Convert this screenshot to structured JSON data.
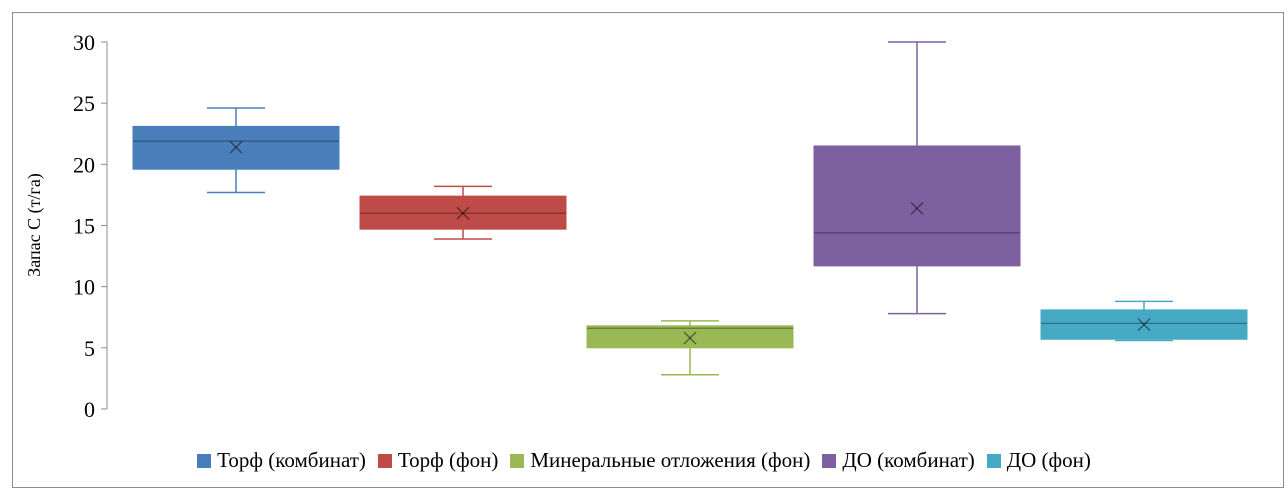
{
  "chart_data": {
    "type": "boxplot",
    "ylabel": "Запас С (т/га)",
    "ylim": [
      0,
      30
    ],
    "yticks": [
      "0",
      "5",
      "10",
      "15",
      "20",
      "25",
      "30"
    ],
    "series": [
      {
        "name": "Торф (комбинат)",
        "color": "#4a7ebb",
        "min": 17.7,
        "q1": 19.6,
        "median": 21.9,
        "q3": 23.1,
        "max": 24.6,
        "mean": 21.4
      },
      {
        "name": "Торф (фон)",
        "color": "#be4b48",
        "min": 13.9,
        "q1": 14.7,
        "median": 16.0,
        "q3": 17.4,
        "max": 18.2,
        "mean": 16.0
      },
      {
        "name": "Минеральные отложения (фон)",
        "color": "#98b954",
        "min": 2.8,
        "q1": 5.0,
        "median": 6.6,
        "q3": 6.8,
        "max": 7.2,
        "mean": 5.8
      },
      {
        "name": "ДО (комбинат)",
        "color": "#7d60a0",
        "min": 7.8,
        "q1": 11.7,
        "median": 14.4,
        "q3": 21.5,
        "max": 30.0,
        "mean": 16.4
      },
      {
        "name": "ДО (фон)",
        "color": "#46aac5",
        "min": 5.6,
        "q1": 5.7,
        "median": 7.0,
        "q3": 8.1,
        "max": 8.8,
        "mean": 6.9
      }
    ],
    "legend": "bottom",
    "grid": false
  }
}
